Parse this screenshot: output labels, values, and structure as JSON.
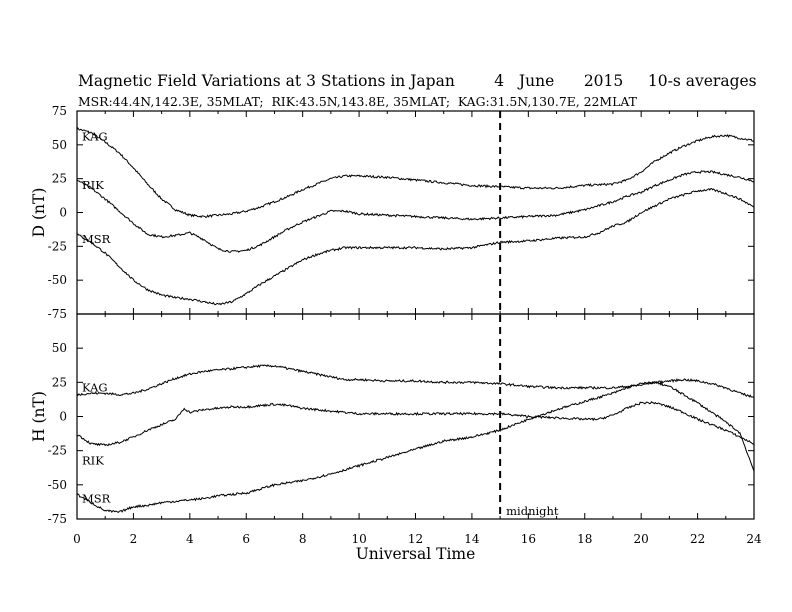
{
  "chart_data": {
    "type": "line",
    "title": {
      "text": "Magnetic Field Variations at 3 Stations in Japan",
      "day": "4",
      "month": "June",
      "year": "2015",
      "averaging": "10-s averages"
    },
    "subtitle": "MSR:44.4N,142.3E, 35MLAT;  RIK:43.5N,143.8E, 35MLAT;  KAG:31.5N,130.7E, 22MLAT",
    "xlabel": "Universal Time",
    "xlim": [
      0,
      24
    ],
    "xticks": [
      "0",
      "2",
      "4",
      "6",
      "8",
      "10",
      "12",
      "14",
      "16",
      "18",
      "20",
      "22",
      "24"
    ],
    "midnight": {
      "x": 15,
      "label": "midnight"
    },
    "panels": [
      {
        "ylabel": "D (nT)",
        "ylim": [
          -75,
          75
        ],
        "yticks": [
          "75",
          "50",
          "25",
          "0",
          "-25",
          "-50",
          "-75"
        ],
        "series": [
          {
            "name": "KAG",
            "x": [
              0,
              0.5,
              1,
              1.5,
              2,
              2.5,
              3,
              3.5,
              4,
              4.5,
              5,
              5.5,
              6,
              6.5,
              7,
              7.5,
              8,
              8.5,
              9,
              9.5,
              10,
              11,
              12,
              13,
              14,
              15,
              16,
              17,
              18,
              19,
              19.5,
              20,
              20.5,
              21,
              21.5,
              22,
              22.5,
              23,
              23.5,
              24
            ],
            "values": [
              62,
              59,
              52,
              44,
              33,
              21,
              10,
              2,
              -2,
              -3,
              -2,
              -1,
              1,
              4,
              8,
              12,
              17,
              21,
              25,
              27,
              27,
              26,
              24,
              22,
              20,
              19,
              18,
              18,
              20,
              21,
              24,
              30,
              38,
              44,
              49,
              53,
              56,
              57,
              55,
              53
            ]
          },
          {
            "name": "RIK",
            "x": [
              0,
              0.5,
              1,
              1.5,
              2,
              2.5,
              3,
              3.5,
              4,
              4.5,
              5,
              5.5,
              6,
              6.5,
              7,
              7.5,
              8,
              8.5,
              9,
              9.5,
              10,
              11,
              12,
              13,
              14,
              15,
              16,
              17,
              18,
              18.5,
              19,
              19.5,
              20,
              20.5,
              21,
              21.5,
              22,
              22.5,
              23,
              23.5,
              24
            ],
            "values": [
              24,
              18,
              10,
              1,
              -8,
              -16,
              -18,
              -17,
              -15,
              -20,
              -27,
              -29,
              -28,
              -24,
              -18,
              -12,
              -7,
              -3,
              1,
              1,
              -1,
              -2,
              -3,
              -4,
              -5,
              -4,
              -3,
              -2,
              2,
              5,
              8,
              12,
              15,
              20,
              24,
              28,
              30,
              30,
              28,
              26,
              23
            ]
          },
          {
            "name": "MSR",
            "x": [
              0,
              0.5,
              1,
              1.5,
              2,
              2.5,
              3,
              3.5,
              4,
              4.5,
              5,
              5.5,
              6,
              6.5,
              7,
              7.5,
              8,
              8.5,
              9,
              9.5,
              10,
              11,
              12,
              13,
              14,
              15,
              16,
              17,
              18,
              18.5,
              19,
              19.5,
              20,
              20.5,
              21,
              21.5,
              22,
              22.5,
              23,
              23.5,
              24
            ],
            "values": [
              -16,
              -22,
              -30,
              -40,
              -50,
              -57,
              -61,
              -63,
              -64,
              -66,
              -68,
              -66,
              -60,
              -53,
              -47,
              -41,
              -35,
              -31,
              -28,
              -26,
              -26,
              -26,
              -26,
              -27,
              -26,
              -22,
              -21,
              -19,
              -18,
              -15,
              -10,
              -7,
              0,
              5,
              10,
              13,
              16,
              17,
              14,
              10,
              4
            ]
          }
        ],
        "label_positions": [
          "top",
          "middle",
          "bottom"
        ]
      },
      {
        "ylabel": "H (nT)",
        "ylim": [
          -75,
          75
        ],
        "yticks": [
          "75",
          "50",
          "25",
          "0",
          "-25",
          "-50",
          "-75"
        ],
        "series": [
          {
            "name": "KAG",
            "x": [
              0,
              0.5,
              1,
              1.5,
              2,
              2.5,
              3,
              3.5,
              4,
              4.5,
              5,
              5.5,
              6,
              6.5,
              7,
              7.5,
              8,
              8.5,
              9,
              9.5,
              10,
              11,
              12,
              13,
              14,
              15,
              16,
              17,
              18,
              19,
              20,
              20.5,
              21,
              21.5,
              22,
              22.5,
              23,
              23.5,
              24
            ],
            "values": [
              16,
              17,
              17,
              16,
              17,
              20,
              24,
              28,
              31,
              33,
              34,
              35,
              36,
              37,
              37,
              35,
              33,
              31,
              29,
              27,
              27,
              26,
              26,
              25,
              25,
              24,
              22,
              21,
              21,
              21,
              23,
              25,
              26,
              27,
              26,
              24,
              21,
              17,
              14
            ]
          },
          {
            "name": "RIK",
            "x": [
              0,
              0.5,
              1,
              1.5,
              2,
              2.5,
              3,
              3.5,
              3.8,
              4,
              4.5,
              5,
              5.5,
              6,
              6.5,
              7,
              7.5,
              8,
              8.5,
              9,
              9.5,
              10,
              11,
              12,
              13,
              14,
              15,
              16,
              17,
              18,
              18.5,
              19,
              19.5,
              20,
              20.5,
              21,
              21.5,
              22,
              22.5,
              23,
              23.5,
              24
            ],
            "values": [
              -13,
              -20,
              -21,
              -19,
              -15,
              -10,
              -6,
              -2,
              6,
              3,
              5,
              6,
              7,
              7,
              8,
              9,
              8,
              6,
              5,
              4,
              3,
              2,
              2,
              2,
              2,
              2,
              2,
              0,
              -1,
              -2,
              -2,
              1,
              6,
              10,
              10,
              7,
              3,
              -2,
              -6,
              -10,
              -15,
              -20
            ]
          },
          {
            "name": "MSR",
            "x": [
              0,
              0.5,
              1,
              1.5,
              2,
              2.5,
              3,
              3.5,
              4,
              4.5,
              5,
              5.5,
              6,
              7,
              8,
              9,
              10,
              11,
              12,
              13,
              14,
              15,
              16,
              17,
              18,
              19,
              19.5,
              20,
              20.5,
              21,
              21.5,
              22,
              22.5,
              23,
              23.5,
              24
            ],
            "values": [
              -57,
              -63,
              -69,
              -70,
              -66,
              -65,
              -63,
              -62,
              -61,
              -60,
              -58,
              -57,
              -56,
              -50,
              -47,
              -42,
              -36,
              -30,
              -24,
              -18,
              -15,
              -10,
              -2,
              5,
              11,
              17,
              21,
              24,
              25,
              22,
              16,
              10,
              3,
              -4,
              -12,
              -40
            ]
          }
        ],
        "label_positions": [
          "top",
          "middle",
          "bottom"
        ]
      }
    ],
    "grid": false,
    "legend": "inline labels at left edge"
  }
}
